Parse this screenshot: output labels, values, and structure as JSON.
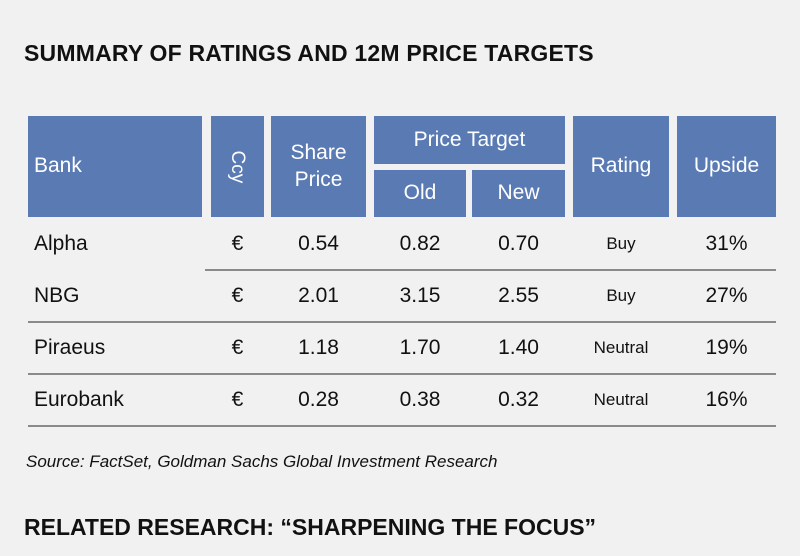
{
  "title": "SUMMARY OF RATINGS AND 12M PRICE TARGETS",
  "table": {
    "headers": {
      "bank": "Bank",
      "ccy": "Ccy",
      "share_price": "Share Price",
      "price_target": "Price Target",
      "old": "Old",
      "new": "New",
      "rating": "Rating",
      "upside": "Upside"
    },
    "rows": [
      {
        "bank": "Alpha",
        "ccy": "€",
        "share_price": "0.54",
        "old": "0.82",
        "new": "0.70",
        "rating": "Buy",
        "upside": "31%"
      },
      {
        "bank": "NBG",
        "ccy": "€",
        "share_price": "2.01",
        "old": "3.15",
        "new": "2.55",
        "rating": "Buy",
        "upside": "27%"
      },
      {
        "bank": "Piraeus",
        "ccy": "€",
        "share_price": "1.18",
        "old": "1.70",
        "new": "1.40",
        "rating": "Neutral",
        "upside": "19%"
      },
      {
        "bank": "Eurobank",
        "ccy": "€",
        "share_price": "0.28",
        "old": "0.38",
        "new": "0.32",
        "rating": "Neutral",
        "upside": "16%"
      }
    ]
  },
  "source": "Source: FactSet, Goldman Sachs Global Investment Research",
  "related": "RELATED RESEARCH: “SHARPENING THE FOCUS”",
  "colors": {
    "header_bg": "#5a7ab3",
    "header_text": "#ffffff",
    "rule": "#8a8a8a",
    "page_bg": "#f1f1f1"
  }
}
